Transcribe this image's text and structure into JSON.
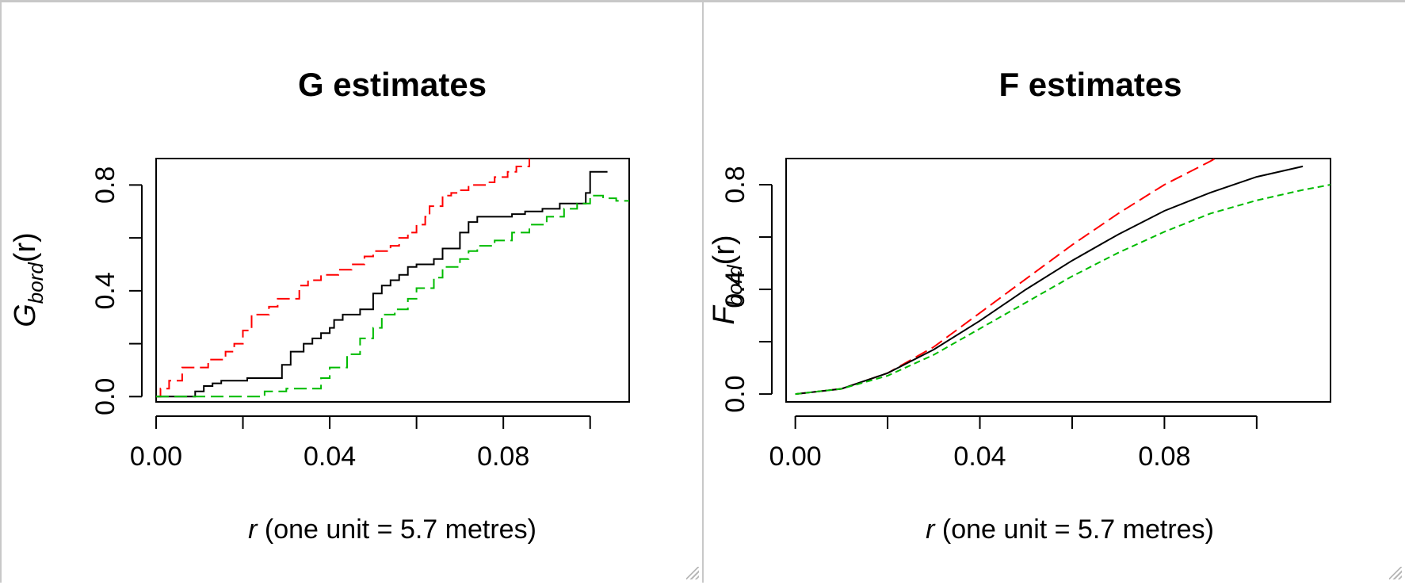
{
  "chart_data": [
    {
      "type": "line",
      "title": "G estimates",
      "xlabel_var": "r",
      "xlabel_rest": " (one unit = 5.7 metres)",
      "ylabel_main": "G",
      "ylabel_sub": "bord",
      "ylabel_arg": "(r)",
      "xlim": [
        0,
        0.109
      ],
      "ylim": [
        -0.02,
        0.9
      ],
      "xticks": [
        0.0,
        0.02,
        0.04,
        0.06,
        0.08,
        0.1
      ],
      "xtick_labels": [
        "0.00",
        "0.04",
        "0.08"
      ],
      "xtick_label_values": [
        0.0,
        0.04,
        0.08
      ],
      "yticks": [
        0.0,
        0.2,
        0.4,
        0.6,
        0.8
      ],
      "ytick_labels": [
        "0.0",
        "0.4",
        "0.8"
      ],
      "ytick_label_values": [
        0.0,
        0.4,
        0.8
      ],
      "grid": false,
      "legend": "none",
      "series": [
        {
          "color": "#ff0000",
          "dash": "long",
          "step": true,
          "x": [
            0.0,
            0.001,
            0.003,
            0.006,
            0.012,
            0.016,
            0.018,
            0.02,
            0.022,
            0.026,
            0.028,
            0.033,
            0.035,
            0.038,
            0.042,
            0.045,
            0.048,
            0.05,
            0.054,
            0.056,
            0.058,
            0.06,
            0.062,
            0.063,
            0.066,
            0.068,
            0.07,
            0.072,
            0.076,
            0.078,
            0.081,
            0.083,
            0.086
          ],
          "y": [
            0.0,
            0.03,
            0.06,
            0.11,
            0.14,
            0.17,
            0.2,
            0.25,
            0.31,
            0.34,
            0.37,
            0.42,
            0.44,
            0.46,
            0.48,
            0.5,
            0.53,
            0.55,
            0.57,
            0.6,
            0.62,
            0.65,
            0.68,
            0.72,
            0.76,
            0.77,
            0.78,
            0.8,
            0.81,
            0.83,
            0.85,
            0.87,
            0.9
          ]
        },
        {
          "color": "#000000",
          "dash": "solid",
          "step": true,
          "x": [
            0.0,
            0.009,
            0.011,
            0.013,
            0.015,
            0.021,
            0.024,
            0.029,
            0.031,
            0.034,
            0.036,
            0.038,
            0.04,
            0.041,
            0.043,
            0.047,
            0.05,
            0.052,
            0.054,
            0.056,
            0.058,
            0.06,
            0.064,
            0.066,
            0.07,
            0.072,
            0.074,
            0.082,
            0.085,
            0.089,
            0.093,
            0.099,
            0.1,
            0.104
          ],
          "y": [
            0.0,
            0.02,
            0.04,
            0.05,
            0.06,
            0.07,
            0.07,
            0.12,
            0.17,
            0.2,
            0.22,
            0.24,
            0.26,
            0.29,
            0.31,
            0.33,
            0.39,
            0.42,
            0.44,
            0.46,
            0.49,
            0.5,
            0.52,
            0.56,
            0.62,
            0.66,
            0.68,
            0.69,
            0.7,
            0.71,
            0.73,
            0.77,
            0.85,
            0.85
          ]
        },
        {
          "color": "#00bb00",
          "dash": "long",
          "step": true,
          "x": [
            0.0,
            0.025,
            0.03,
            0.038,
            0.04,
            0.044,
            0.047,
            0.05,
            0.052,
            0.055,
            0.058,
            0.06,
            0.064,
            0.066,
            0.07,
            0.072,
            0.074,
            0.078,
            0.082,
            0.086,
            0.09,
            0.094,
            0.097,
            0.1,
            0.103,
            0.106,
            0.109
          ],
          "y": [
            0.0,
            0.02,
            0.03,
            0.07,
            0.11,
            0.16,
            0.22,
            0.26,
            0.31,
            0.33,
            0.37,
            0.41,
            0.45,
            0.49,
            0.52,
            0.55,
            0.57,
            0.59,
            0.62,
            0.65,
            0.68,
            0.71,
            0.73,
            0.76,
            0.75,
            0.74,
            0.74
          ]
        }
      ]
    },
    {
      "type": "line",
      "title": "F estimates",
      "xlabel_var": "r",
      "xlabel_rest": " (one unit = 5.7 metres)",
      "ylabel_main": "F",
      "ylabel_sub": "bord",
      "ylabel_arg": "(r)",
      "xlim": [
        -0.002,
        0.116
      ],
      "ylim": [
        -0.03,
        0.9
      ],
      "xticks": [
        0.0,
        0.02,
        0.04,
        0.06,
        0.08,
        0.1
      ],
      "xtick_labels": [
        "0.00",
        "0.04",
        "0.08"
      ],
      "xtick_label_values": [
        0.0,
        0.04,
        0.08
      ],
      "yticks": [
        0.0,
        0.2,
        0.4,
        0.6,
        0.8
      ],
      "ytick_labels": [
        "0.0",
        "0.4",
        "0.8"
      ],
      "ytick_label_values": [
        0.0,
        0.4,
        0.8
      ],
      "grid": false,
      "legend": "none",
      "series": [
        {
          "color": "#ff0000",
          "dash": "long",
          "step": false,
          "x": [
            0.0,
            0.01,
            0.02,
            0.03,
            0.04,
            0.05,
            0.06,
            0.07,
            0.08,
            0.09,
            0.092
          ],
          "y": [
            0.0,
            0.02,
            0.08,
            0.18,
            0.31,
            0.44,
            0.57,
            0.69,
            0.8,
            0.89,
            0.91
          ]
        },
        {
          "color": "#000000",
          "dash": "solid",
          "step": false,
          "x": [
            0.0,
            0.01,
            0.02,
            0.03,
            0.04,
            0.05,
            0.06,
            0.07,
            0.08,
            0.09,
            0.1,
            0.105,
            0.11
          ],
          "y": [
            0.0,
            0.02,
            0.08,
            0.17,
            0.28,
            0.4,
            0.51,
            0.61,
            0.7,
            0.77,
            0.83,
            0.85,
            0.87
          ]
        },
        {
          "color": "#00bb00",
          "dash": "short",
          "step": false,
          "x": [
            0.0,
            0.01,
            0.02,
            0.03,
            0.04,
            0.05,
            0.06,
            0.07,
            0.08,
            0.09,
            0.1,
            0.11,
            0.116
          ],
          "y": [
            0.0,
            0.02,
            0.07,
            0.15,
            0.25,
            0.35,
            0.45,
            0.54,
            0.62,
            0.69,
            0.74,
            0.78,
            0.8
          ]
        }
      ]
    }
  ]
}
